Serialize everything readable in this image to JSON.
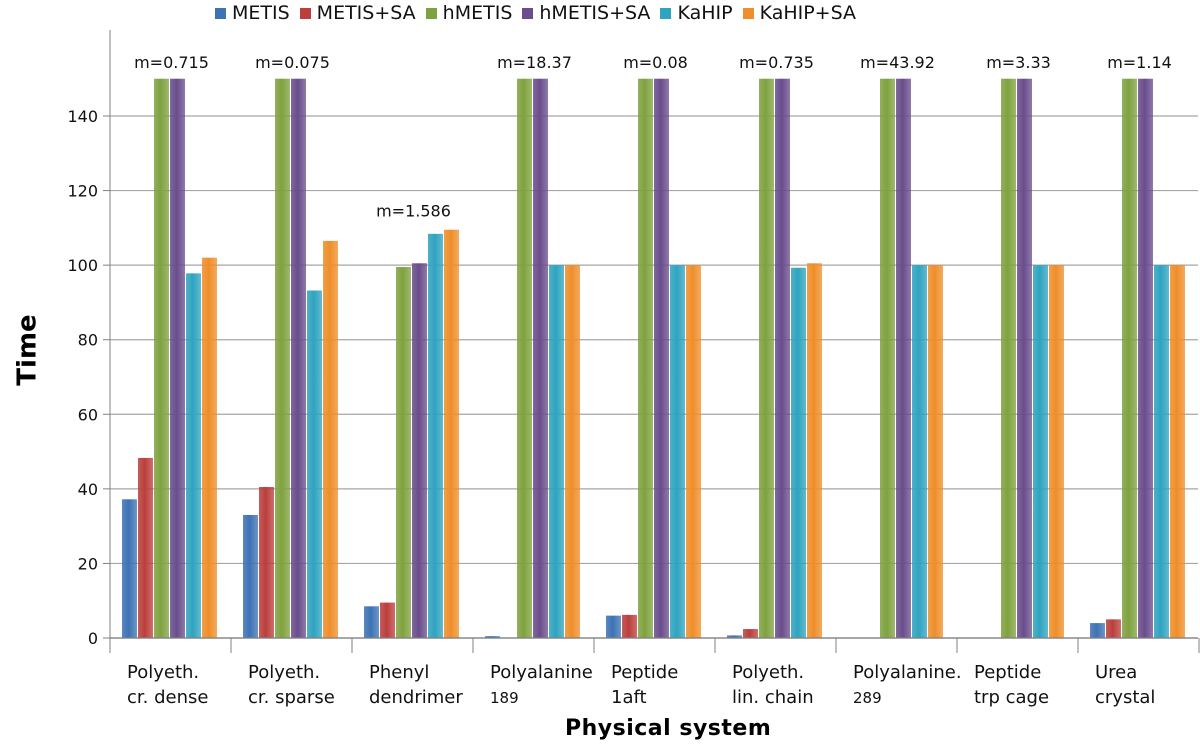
{
  "chart_data": {
    "type": "bar",
    "xlabel": "Physical system",
    "ylabel": "Time",
    "ylim": [
      0,
      150
    ],
    "yticks": [
      0,
      20,
      40,
      60,
      80,
      100,
      120,
      140
    ],
    "grid": true,
    "legend_position": "top",
    "categories": [
      [
        "Polyeth.",
        "cr. dense"
      ],
      [
        "Polyeth.",
        "cr. sparse"
      ],
      [
        "Phenyl",
        "dendrimer"
      ],
      [
        "Polyalanine",
        "189"
      ],
      [
        "Peptide",
        "1aft"
      ],
      [
        "Polyeth.",
        "lin. chain"
      ],
      [
        "Polyalanine.",
        "289"
      ],
      [
        "Peptide",
        "trp cage"
      ],
      [
        "Urea",
        "crystal"
      ]
    ],
    "annotations": [
      "m=0.715",
      "m=0.075",
      "m=1.586",
      "m=18.37",
      "m=0.08",
      "m=0.735",
      "m=43.92",
      "m=3.33",
      "m=1.14"
    ],
    "series": [
      {
        "name": "METIS",
        "color": "#3d72b4",
        "values": [
          37.2,
          33.0,
          8.5,
          0.5,
          6.0,
          0.7,
          0,
          0,
          4.0
        ]
      },
      {
        "name": "METIS+SA",
        "color": "#bb3f3c",
        "values": [
          48.3,
          40.5,
          9.5,
          0,
          6.2,
          2.4,
          0,
          0,
          5.0
        ]
      },
      {
        "name": "hMETIS",
        "color": "#7fa23f",
        "values": [
          150,
          150,
          99.5,
          150,
          150,
          150,
          150,
          150,
          150
        ]
      },
      {
        "name": "hMETIS+SA",
        "color": "#6a4d8c",
        "values": [
          150,
          150,
          100.5,
          150,
          150,
          150,
          150,
          150,
          150
        ]
      },
      {
        "name": "KaHIP",
        "color": "#2fa3c0",
        "values": [
          97.8,
          93.2,
          108.4,
          100,
          100,
          99.3,
          100,
          100,
          100
        ]
      },
      {
        "name": "KaHIP+SA",
        "color": "#ef8e2a",
        "values": [
          102.0,
          106.5,
          109.5,
          100,
          100,
          100.5,
          100,
          100,
          100
        ]
      }
    ]
  }
}
